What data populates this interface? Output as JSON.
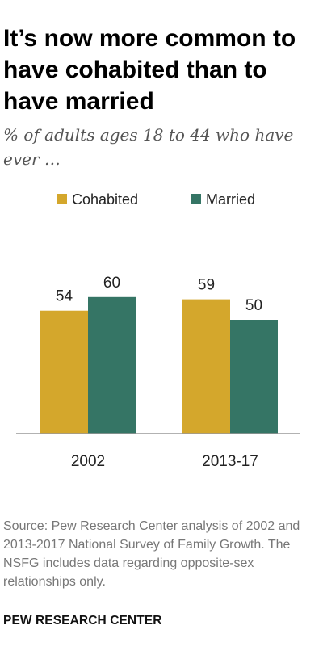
{
  "title": "It’s now more common to have cohabited than to have married",
  "subtitle": "% of adults ages 18 to 44 who have ever …",
  "source": "Source: Pew Research Center analysis of 2002 and 2013-2017 National Survey of Family Growth. The NSFG includes data regarding opposite-sex relationships only.",
  "brand": "PEW RESEARCH CENTER",
  "colors": {
    "cohabited": "#d4a72c",
    "married": "#357565",
    "axis": "#999999"
  },
  "chart_data": {
    "type": "bar",
    "categories": [
      "2002",
      "2013-17"
    ],
    "series": [
      {
        "name": "Cohabited",
        "values": [
          54,
          59
        ]
      },
      {
        "name": "Married",
        "values": [
          60,
          50
        ]
      }
    ],
    "title": "",
    "xlabel": "",
    "ylabel": "",
    "ylim": [
      0,
      100
    ],
    "grid": false,
    "legend": "top"
  }
}
